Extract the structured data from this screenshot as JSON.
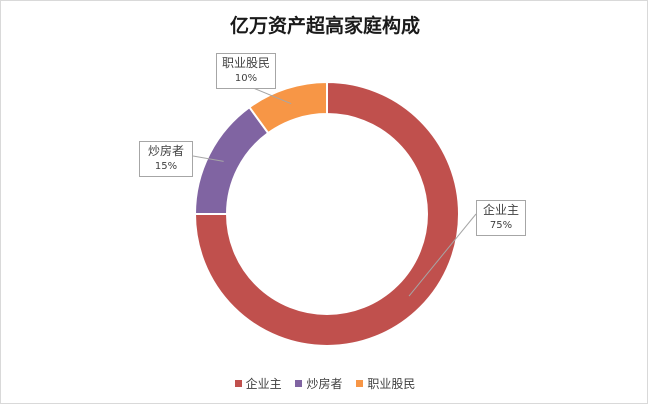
{
  "chart_data": {
    "type": "pie",
    "variant": "donut",
    "title": "亿万资产超高家庭构成",
    "categories": [
      "企业主",
      "炒房者",
      "职业股民"
    ],
    "values": [
      75,
      15,
      10
    ],
    "labels": [
      "75%",
      "15%",
      "10%"
    ],
    "colors": [
      "#c0504d",
      "#8064a2",
      "#f79646"
    ],
    "legend": "bottom"
  }
}
